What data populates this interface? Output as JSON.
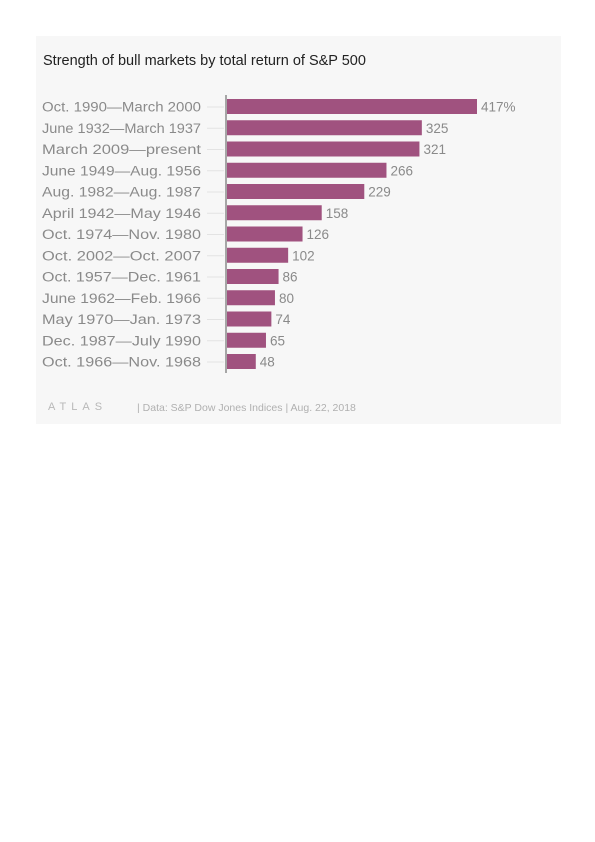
{
  "chart_data": {
    "type": "bar",
    "orientation": "horizontal",
    "title": "Strength of bull markets by total return of S&P 500",
    "xlabel": "",
    "ylabel": "",
    "xlim": [
      0,
      417
    ],
    "grid": false,
    "bar_color": "#a0527f",
    "categories": [
      "Oct. 1990—March 2000",
      "June 1932—March 1937",
      "March 2009—present",
      "June 1949—Aug. 1956",
      "Aug. 1982—Aug. 1987",
      "April 1942—May 1946",
      "Oct. 1974—Nov. 1980",
      "Oct. 2002—Oct. 2007",
      "Oct. 1957—Dec. 1961",
      "June 1962—Feb. 1966",
      "May 1970—Jan. 1973",
      "Dec. 1987—July 1990",
      "Oct. 1966—Nov. 1968"
    ],
    "values": [
      417,
      325,
      321,
      266,
      229,
      158,
      126,
      102,
      86,
      80,
      74,
      65,
      48
    ],
    "data_labels": [
      "417%",
      "325",
      "321",
      "266",
      "229",
      "158",
      "126",
      "102",
      "86",
      "80",
      "74",
      "65",
      "48"
    ]
  },
  "footer": {
    "logo": "ATLAS",
    "source": "| Data: S&P Dow Jones Indices | Aug. 22, 2018"
  },
  "colors": {
    "background": "#f7f7f7",
    "bar": "#a0527f",
    "label": "#8a8a8a",
    "title": "#222222"
  }
}
